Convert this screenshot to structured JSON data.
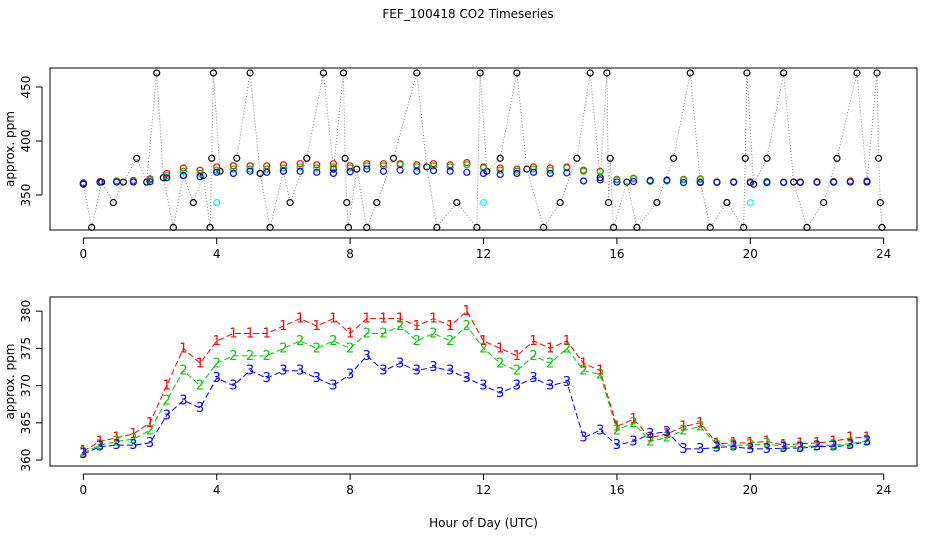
{
  "chart_data": [
    {
      "type": "scatter",
      "title": "FEF_100418  CO2 Timeseries",
      "ylabel": "approx. ppm",
      "xlim": [
        -1,
        25
      ],
      "xticks": [
        0,
        4,
        8,
        12,
        16,
        20,
        24
      ],
      "ylim": [
        317.6,
        467.6
      ],
      "yticks": [
        350,
        400,
        450
      ],
      "x": [
        0,
        0.5,
        1,
        1.5,
        2,
        2.5,
        3,
        3.5,
        4,
        4.5,
        5,
        5.5,
        6,
        6.5,
        7,
        7.5,
        8,
        8.5,
        9,
        9.5,
        10,
        10.5,
        11,
        11.5,
        12,
        12.5,
        13,
        13.5,
        14,
        14.5,
        15,
        15.5,
        16,
        16.5,
        17,
        17.5,
        18,
        18.5,
        19,
        19.5,
        20,
        20.5,
        21,
        21.5,
        22,
        22.5,
        23,
        23.5
      ],
      "series": [
        {
          "color": "#000000",
          "line": "dotted",
          "x": [
            0,
            0.25,
            0.55,
            0.9,
            1.2,
            1.6,
            1.9,
            2.2,
            2.4,
            2.7,
            3,
            3.3,
            3.6,
            3.8,
            3.85,
            3.9,
            4.1,
            4.6,
            5,
            5.3,
            5.6,
            6,
            6.2,
            6.7,
            7.2,
            7.5,
            7.8,
            7.85,
            7.9,
            7.95,
            8.2,
            8.5,
            8.8,
            9.3,
            10,
            10.3,
            10.6,
            11.2,
            11.8,
            11.9,
            12.1,
            12.5,
            13,
            13.3,
            13.8,
            14.3,
            14.8,
            15.2,
            15.5,
            15.7,
            15.75,
            15.8,
            15.9,
            16.3,
            16.6,
            17.2,
            17.7,
            18.2,
            18.5,
            18.8,
            19.3,
            19.8,
            19.85,
            19.9,
            20.1,
            20.5,
            21,
            21.3,
            21.7,
            22.2,
            22.6,
            23.2,
            23.5,
            23.8,
            23.85,
            23.9,
            23.95
          ],
          "values": [
            360,
            320,
            362,
            343,
            362,
            384,
            362,
            463,
            366,
            320,
            368,
            343,
            368,
            320,
            384,
            463,
            372,
            384,
            463,
            370,
            320,
            372,
            343,
            384,
            463,
            374,
            463,
            384,
            343,
            320,
            374,
            320,
            343,
            384,
            463,
            376,
            320,
            343,
            320,
            463,
            372,
            384,
            463,
            374,
            320,
            343,
            384,
            463,
            366,
            463,
            343,
            384,
            320,
            362,
            320,
            343,
            384,
            463,
            362,
            320,
            343,
            320,
            384,
            463,
            360,
            384,
            463,
            362,
            320,
            343,
            384,
            463,
            362,
            463,
            384,
            343,
            320
          ]
        },
        {
          "color": "#ff0000",
          "values": [
            361.2,
            362.5,
            363,
            363.5,
            365,
            370,
            375,
            373,
            376,
            377,
            377,
            377,
            378,
            379,
            378,
            379,
            377,
            379,
            379,
            379,
            378,
            379,
            378,
            380,
            376,
            375,
            374,
            376,
            375,
            376,
            373,
            372,
            364.5,
            365.5,
            363,
            363.5,
            364.5,
            365,
            362.2,
            362.3,
            362.3,
            362.5,
            362,
            362.2,
            362.3,
            362.5,
            363,
            363
          ]
        },
        {
          "color": "#00cc00",
          "values": [
            361,
            362,
            362.5,
            362.8,
            364,
            368,
            372,
            370,
            373,
            374,
            374,
            374,
            375,
            376,
            375,
            376,
            375,
            377,
            377,
            378,
            376,
            377,
            376,
            378,
            375,
            373,
            372,
            374,
            373,
            375,
            372,
            371.5,
            364,
            365,
            362.5,
            363,
            364,
            364.5,
            362,
            362,
            362,
            362.2,
            361.8,
            361.8,
            361.9,
            362,
            362.2,
            362.6
          ]
        },
        {
          "color": "#0000ff",
          "values": [
            360.8,
            361.8,
            362,
            362,
            362.3,
            366,
            368,
            367,
            371,
            370,
            372,
            371,
            372,
            372,
            371,
            370,
            371.5,
            374,
            372,
            373,
            372,
            372.5,
            372,
            371,
            370,
            369,
            370,
            371,
            370,
            370.5,
            363,
            364,
            362,
            362.5,
            363.5,
            363.8,
            361.5,
            361.5,
            361.7,
            361.8,
            361.5,
            361.5,
            361.6,
            361.6,
            361.8,
            361.8,
            362,
            362.5
          ]
        },
        {
          "color": "#00ffff",
          "x": [
            4,
            12,
            20
          ],
          "values": [
            343,
            343,
            343
          ]
        }
      ]
    },
    {
      "type": "line",
      "ylabel": "approx. ppm",
      "xlabel": "Hour of Day (UTC)",
      "xlim": [
        -1,
        25
      ],
      "xticks": [
        0,
        4,
        8,
        12,
        16,
        20,
        24
      ],
      "ylim": [
        359.2,
        381.9
      ],
      "yticks": [
        360,
        365,
        370,
        375,
        380
      ],
      "x": [
        0,
        0.5,
        1,
        1.5,
        2,
        2.5,
        3,
        3.5,
        4,
        4.5,
        5,
        5.5,
        6,
        6.5,
        7,
        7.5,
        8,
        8.5,
        9,
        9.5,
        10,
        10.5,
        11,
        11.5,
        12,
        12.5,
        13,
        13.5,
        14,
        14.5,
        15,
        15.5,
        16,
        16.5,
        17,
        17.5,
        18,
        18.5,
        19,
        19.5,
        20,
        20.5,
        21,
        21.5,
        22,
        22.5,
        23,
        23.5
      ],
      "series": [
        {
          "marker": "1",
          "color": "#ff0000",
          "values": [
            361.2,
            362.5,
            363,
            363.5,
            365,
            370,
            375,
            373,
            376,
            377,
            377,
            377,
            378,
            379,
            378,
            379,
            377,
            379,
            379,
            379,
            378,
            379,
            378,
            380,
            376,
            375,
            374,
            376,
            375,
            376,
            373,
            372,
            364.5,
            365.5,
            363,
            363.5,
            364.5,
            365,
            362.2,
            362.3,
            362.3,
            362.5,
            362,
            362.2,
            362.3,
            362.5,
            363,
            363
          ]
        },
        {
          "marker": "2",
          "color": "#00cc00",
          "values": [
            361,
            362,
            362.5,
            362.8,
            364,
            368,
            372,
            370,
            373,
            374,
            374,
            374,
            375,
            376,
            375,
            376,
            375,
            377,
            377,
            378,
            376,
            377,
            376,
            378,
            375,
            373,
            372,
            374,
            373,
            375,
            372,
            371.5,
            364,
            365,
            362.5,
            363,
            364,
            364.5,
            362,
            362,
            362,
            362.2,
            361.8,
            361.8,
            361.9,
            362,
            362.2,
            362.6
          ]
        },
        {
          "marker": "3",
          "color": "#0000ff",
          "values": [
            360.8,
            361.8,
            362,
            362,
            362.3,
            366,
            368,
            367,
            371,
            370,
            372,
            371,
            372,
            372,
            371,
            370,
            371.5,
            374,
            372,
            373,
            372,
            372.5,
            372,
            371,
            370,
            369,
            370,
            371,
            370,
            370.5,
            363,
            364,
            362,
            362.5,
            363.5,
            363.8,
            361.5,
            361.5,
            361.7,
            361.8,
            361.5,
            361.5,
            361.6,
            361.6,
            361.8,
            361.8,
            362,
            362.5
          ]
        }
      ]
    }
  ]
}
